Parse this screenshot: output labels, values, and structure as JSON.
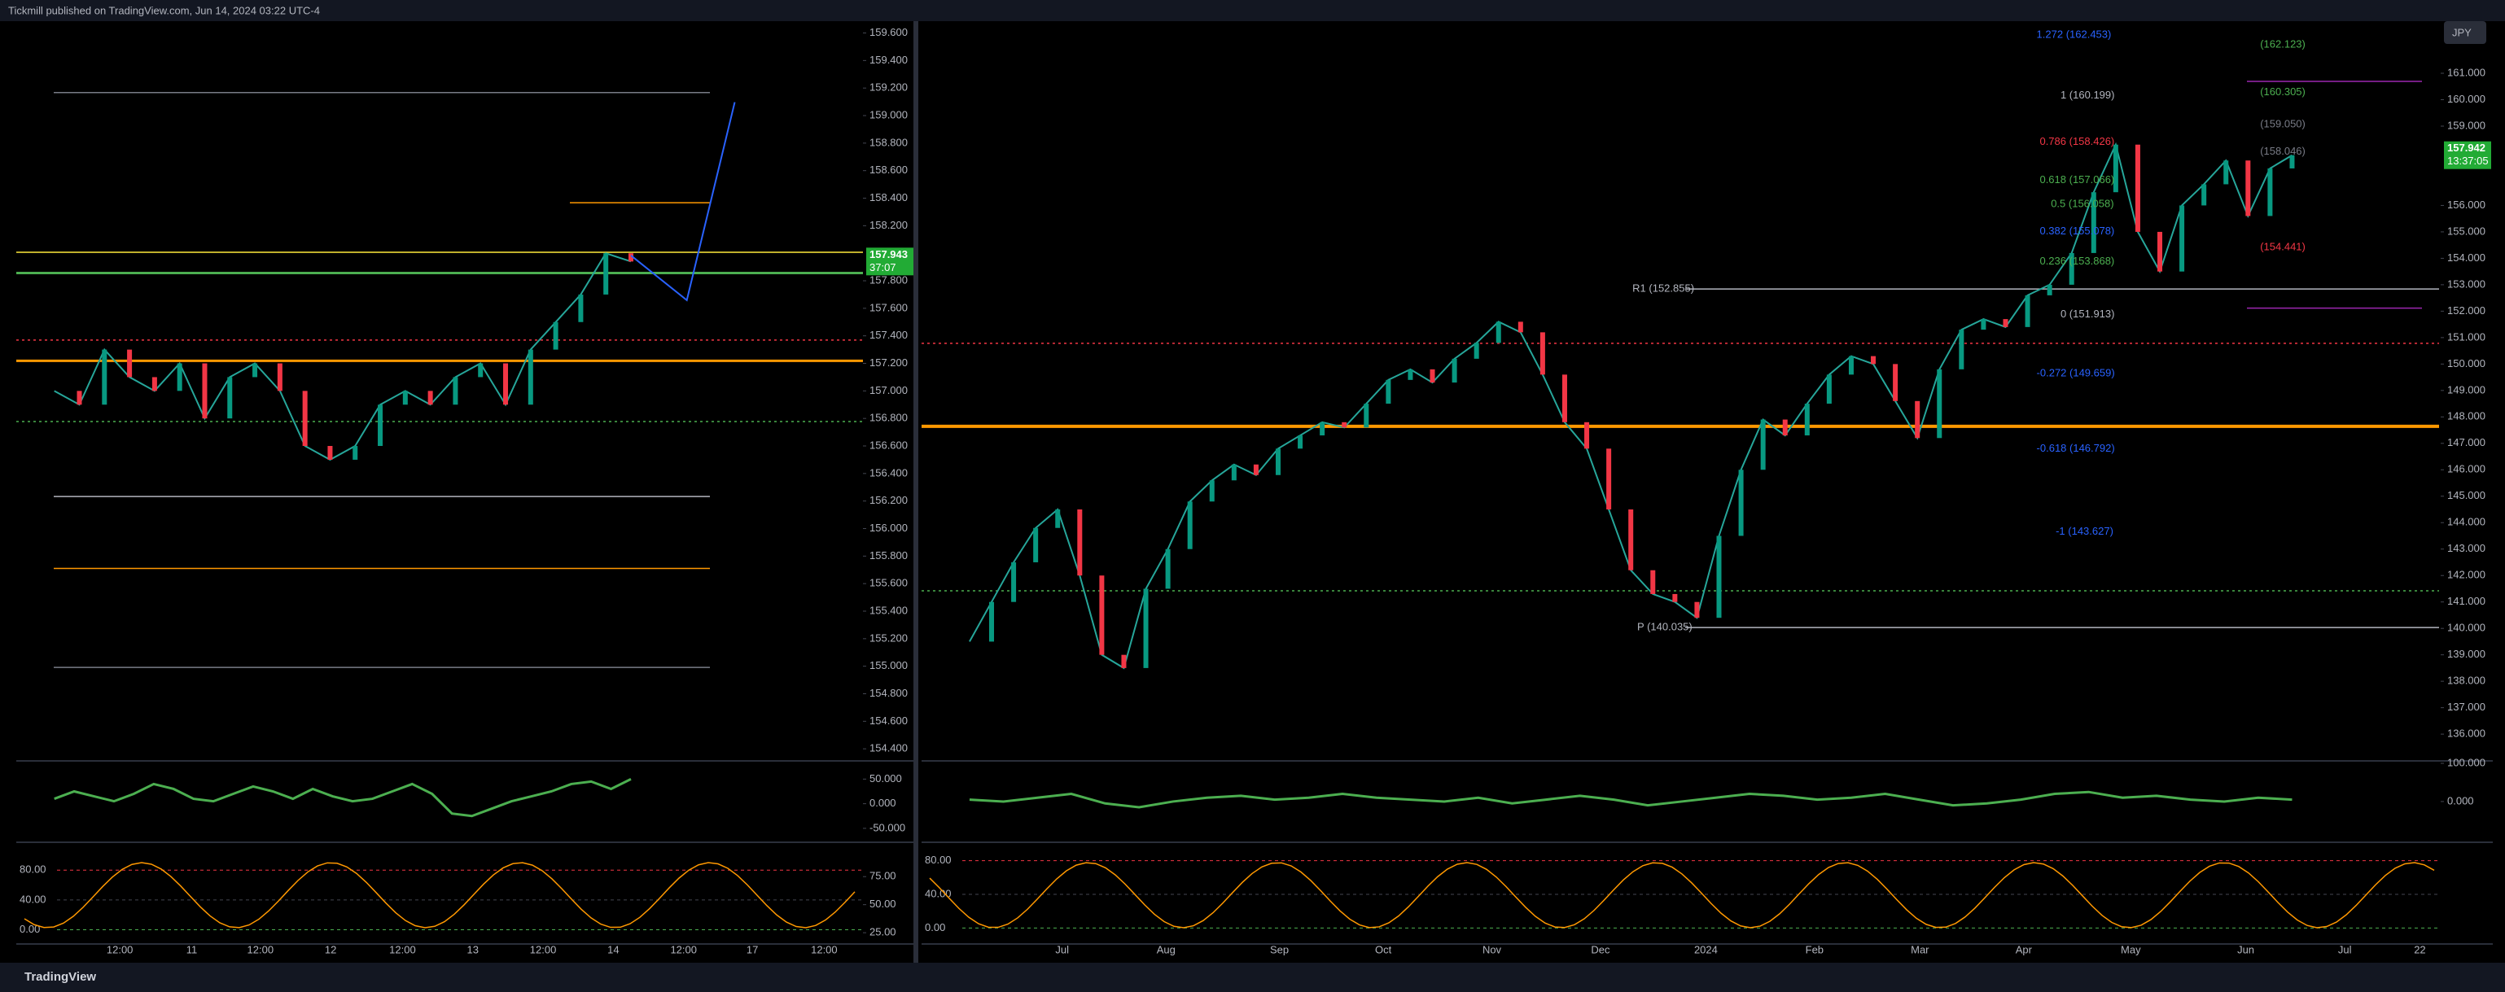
{
  "header": {
    "publisher": "Tickmill published on TradingView.com, Jun 14, 2024 03:22 UTC-4"
  },
  "footer": {
    "brand": "TradingView"
  },
  "left_chart": {
    "price_axis": {
      "ylim": [
        154.33,
        159.68
      ],
      "ticks": [
        {
          "value": 159.6,
          "label": "159.600"
        },
        {
          "value": 159.4,
          "label": "159.400"
        },
        {
          "value": 159.2,
          "label": "159.200"
        },
        {
          "value": 159.0,
          "label": "159.000"
        },
        {
          "value": 158.8,
          "label": "158.800"
        },
        {
          "value": 158.6,
          "label": "158.600"
        },
        {
          "value": 158.4,
          "label": "158.400"
        },
        {
          "value": 158.2,
          "label": "158.200"
        },
        {
          "value": 157.8,
          "label": "157.800"
        },
        {
          "value": 157.6,
          "label": "157.600"
        },
        {
          "value": 157.4,
          "label": "157.400"
        },
        {
          "value": 157.2,
          "label": "157.200"
        },
        {
          "value": 157.0,
          "label": "157.000"
        },
        {
          "value": 156.8,
          "label": "156.800"
        },
        {
          "value": 156.6,
          "label": "156.600"
        },
        {
          "value": 156.4,
          "label": "156.400"
        },
        {
          "value": 156.2,
          "label": "156.200"
        },
        {
          "value": 156.0,
          "label": "156.000"
        },
        {
          "value": 155.8,
          "label": "155.800"
        },
        {
          "value": 155.6,
          "label": "155.600"
        },
        {
          "value": 155.4,
          "label": "155.400"
        },
        {
          "value": 155.2,
          "label": "155.200"
        },
        {
          "value": 155.0,
          "label": "155.000"
        },
        {
          "value": 154.8,
          "label": "154.800"
        },
        {
          "value": 154.6,
          "label": "154.600"
        },
        {
          "value": 154.4,
          "label": "154.400"
        }
      ]
    },
    "price_tag": {
      "price": "157.943",
      "countdown": "37:07"
    },
    "time_axis": [
      "12:00",
      "11",
      "12:00",
      "12",
      "12:00",
      "13",
      "12:00",
      "14",
      "12:00",
      "17",
      "12:00"
    ],
    "closes": [
      157.0,
      156.9,
      157.3,
      157.1,
      157.0,
      157.2,
      156.8,
      157.1,
      157.2,
      157.0,
      156.6,
      156.5,
      156.6,
      156.9,
      157.0,
      156.9,
      157.1,
      157.2,
      156.9,
      157.3,
      157.5,
      157.7,
      158.0,
      157.94
    ],
    "osc1": {
      "ylim": [
        -70,
        82
      ],
      "ticks": [
        {
          "value": 50,
          "label": "50.000"
        },
        {
          "value": 0,
          "label": "0.000"
        },
        {
          "value": -50,
          "label": "-50.000"
        }
      ],
      "values": [
        10,
        25,
        15,
        5,
        20,
        40,
        30,
        10,
        5,
        20,
        35,
        25,
        10,
        30,
        15,
        5,
        10,
        25,
        40,
        20,
        -20,
        -25,
        -10,
        5,
        15,
        25,
        40,
        45,
        30,
        50
      ]
    },
    "osc2": {
      "ylim": [
        -17,
        112
      ],
      "ticks": [
        {
          "value": 80,
          "label": "80.00"
        },
        {
          "value": 40,
          "label": "40.00"
        },
        {
          "value": 0,
          "label": "0.00"
        }
      ],
      "ylim2": [
        16.4,
        102
      ],
      "ticks2": [
        {
          "value": 75,
          "label": "75.00"
        },
        {
          "value": 50,
          "label": "50.00"
        },
        {
          "value": 25,
          "label": "25.00"
        }
      ]
    }
  },
  "right_chart": {
    "currency": "JPY",
    "price_axis": {
      "ylim": [
        135.08,
        162.94
      ],
      "ticks": [
        {
          "value": 161,
          "label": "161.000"
        },
        {
          "value": 160,
          "label": "160.000"
        },
        {
          "value": 159,
          "label": "159.000"
        },
        {
          "value": 156,
          "label": "156.000"
        },
        {
          "value": 155,
          "label": "155.000"
        },
        {
          "value": 154,
          "label": "154.000"
        },
        {
          "value": 153,
          "label": "153.000"
        },
        {
          "value": 152,
          "label": "152.000"
        },
        {
          "value": 151,
          "label": "151.000"
        },
        {
          "value": 150,
          "label": "150.000"
        },
        {
          "value": 149,
          "label": "149.000"
        },
        {
          "value": 148,
          "label": "148.000"
        },
        {
          "value": 147,
          "label": "147.000"
        },
        {
          "value": 146,
          "label": "146.000"
        },
        {
          "value": 145,
          "label": "145.000"
        },
        {
          "value": 144,
          "label": "144.000"
        },
        {
          "value": 143,
          "label": "143.000"
        },
        {
          "value": 142,
          "label": "142.000"
        },
        {
          "value": 141,
          "label": "141.000"
        },
        {
          "value": 140,
          "label": "140.000"
        },
        {
          "value": 139,
          "label": "139.000"
        },
        {
          "value": 138,
          "label": "138.000"
        },
        {
          "value": 137,
          "label": "137.000"
        },
        {
          "value": 136,
          "label": "136.000"
        }
      ]
    },
    "price_tag": {
      "price": "157.942",
      "countdown": "13:37:05"
    },
    "time_axis": [
      "Jul",
      "Aug",
      "Sep",
      "Oct",
      "Nov",
      "Dec",
      "2024",
      "Feb",
      "Mar",
      "Apr",
      "May",
      "Jun",
      "Jul",
      "22"
    ],
    "closes": [
      139.5,
      141,
      142.5,
      143.8,
      144.5,
      142,
      139,
      138.5,
      141.5,
      143,
      144.8,
      145.6,
      146.2,
      145.8,
      146.8,
      147.3,
      147.8,
      147.6,
      148.5,
      149.4,
      149.8,
      149.3,
      150.2,
      150.8,
      151.6,
      151.2,
      149.6,
      147.8,
      146.8,
      144.5,
      142.2,
      141.3,
      141,
      140.4,
      143.5,
      146,
      147.9,
      147.3,
      148.5,
      149.6,
      150.3,
      150,
      148.6,
      147.2,
      149.8,
      151.3,
      151.7,
      151.4,
      152.6,
      153,
      154.2,
      156.5,
      158.3,
      155,
      153.5,
      156,
      156.8,
      157.7,
      155.6,
      157.4,
      157.9
    ],
    "annotations": [
      {
        "text": "1.272 (162.453)",
        "color": "#2962ff"
      },
      {
        "text": "1 (160.199)",
        "color": "#b2b5be"
      },
      {
        "text": "0.786 (158.426)",
        "color": "#f23645"
      },
      {
        "text": "0.618 (157.066)",
        "color": "#4caf50"
      },
      {
        "text": "0.5 (156.058)",
        "color": "#4caf50"
      },
      {
        "text": "0.382 (155.078)",
        "color": "#2962ff"
      },
      {
        "text": "0.236 (153.868)",
        "color": "#4caf50"
      },
      {
        "text": "0 (151.913)",
        "color": "#b2b5be"
      },
      {
        "text": "-0.272 (149.659)",
        "color": "#2962ff"
      },
      {
        "text": "-0.618 (146.792)",
        "color": "#2962ff"
      },
      {
        "text": "-1 (143.627)",
        "color": "#2962ff"
      },
      {
        "text": "R1 (152.855)",
        "color": "#b2b5be"
      },
      {
        "text": "P (140.035)",
        "color": "#b2b5be"
      },
      {
        "text": "(162.123)",
        "color": "#4caf50"
      },
      {
        "text": "(160.305)",
        "color": "#4caf50"
      },
      {
        "text": "(159.050)",
        "color": "#787b86"
      },
      {
        "text": "(158.046)",
        "color": "#787b86"
      },
      {
        "text": "(154.441)",
        "color": "#f23645"
      }
    ],
    "osc1": {
      "ylim": [
        -96,
        100
      ],
      "ticks": [
        {
          "value": 100,
          "label": "100.000"
        },
        {
          "value": 0,
          "label": "0.000"
        }
      ],
      "values": [
        5,
        0,
        10,
        20,
        -5,
        -15,
        0,
        10,
        15,
        5,
        10,
        20,
        10,
        5,
        0,
        10,
        -5,
        5,
        15,
        5,
        -10,
        0,
        10,
        20,
        15,
        5,
        10,
        20,
        5,
        -10,
        -5,
        5,
        20,
        25,
        10,
        15,
        5,
        0,
        10,
        5
      ]
    },
    "osc2": {
      "ylim": [
        -17,
        97
      ],
      "ticks": [
        {
          "value": 80,
          "label": "80.00"
        },
        {
          "value": 40,
          "label": "40.00"
        },
        {
          "value": 0,
          "label": "0.00"
        }
      ]
    }
  }
}
